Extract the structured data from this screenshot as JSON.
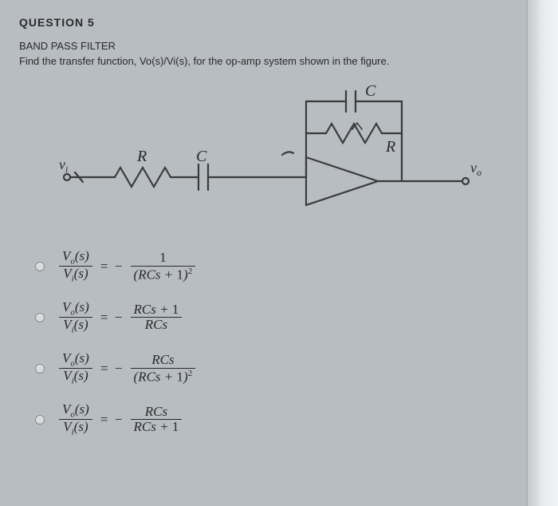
{
  "question_number": "QUESTION 5",
  "title": "BAND PASS FILTER",
  "prompt": "Find the transfer function, Vo(s)/Vi(s), for the op-amp system shown in the figure.",
  "circuit": {
    "labels": {
      "vi": "v",
      "vi_sub": "i",
      "vo": "v",
      "vo_sub": "o",
      "R": "R",
      "C": "C"
    },
    "stroke": "#3a3a3a",
    "stroke_width": 2.2
  },
  "options": [
    {
      "lhs_num": "V<sub class='sub'>o</sub>(s)",
      "lhs_den": "V<sub class='sub'>i</sub>(s)",
      "rhs_num": "<span class='rm'>1</span>",
      "rhs_den": "(RCs + <span class='rm'>1</span>)<span class='sup'>2</span>"
    },
    {
      "lhs_num": "V<sub class='sub'>o</sub>(s)",
      "lhs_den": "V<sub class='sub'>i</sub>(s)",
      "rhs_num": "RCs + <span class='rm'>1</span>",
      "rhs_den": "RCs"
    },
    {
      "lhs_num": "V<sub class='sub'>o</sub>(s)",
      "lhs_den": "V<sub class='sub'>i</sub>(s)",
      "rhs_num": "RCs",
      "rhs_den": "(RCs + <span class='rm'>1</span>)<span class='sup'>2</span>"
    },
    {
      "lhs_num": "V<sub class='sub'>o</sub>(s)",
      "lhs_den": "V<sub class='sub'>i</sub>(s)",
      "rhs_num": "RCs",
      "rhs_den": "RCs + <span class='rm'>1</span>"
    }
  ]
}
